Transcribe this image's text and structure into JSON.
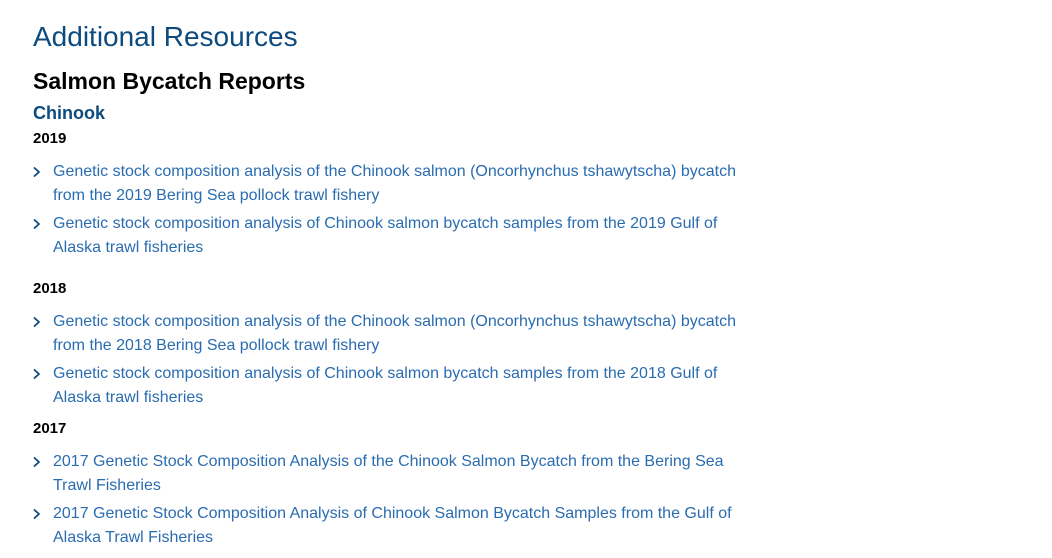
{
  "page": {
    "heading": "Additional Resources",
    "section_title": "Salmon Bycatch Reports",
    "species": "Chinook"
  },
  "years": [
    {
      "year": "2019",
      "links": [
        {
          "text": "Genetic stock composition analysis of the Chinook salmon (Oncorhynchus tshawytscha) bycatch from the 2019 Bering Sea pollock trawl fishery"
        },
        {
          "text": "Genetic stock composition analysis of Chinook salmon bycatch samples from the 2019 Gulf of Alaska trawl fisheries"
        }
      ]
    },
    {
      "year": "2018",
      "links": [
        {
          "text": "Genetic stock composition analysis of the Chinook salmon (Oncorhynchus tshawytscha) bycatch from the 2018 Bering Sea pollock trawl fishery"
        },
        {
          "text": "Genetic stock composition analysis of Chinook salmon bycatch samples from the 2018 Gulf of Alaska trawl fisheries"
        }
      ]
    },
    {
      "year": "2017",
      "links": [
        {
          "text": "2017 Genetic Stock Composition Analysis of the Chinook Salmon Bycatch from the Bering Sea Trawl Fisheries"
        },
        {
          "text": "2017 Genetic Stock Composition Analysis of Chinook Salmon Bycatch Samples from the Gulf of Alaska Trawl Fisheries"
        }
      ]
    }
  ],
  "colors": {
    "heading": "#0d4a7d",
    "link": "#2a6cb0"
  },
  "icons": {
    "link_marker": "chevron-right-icon"
  }
}
